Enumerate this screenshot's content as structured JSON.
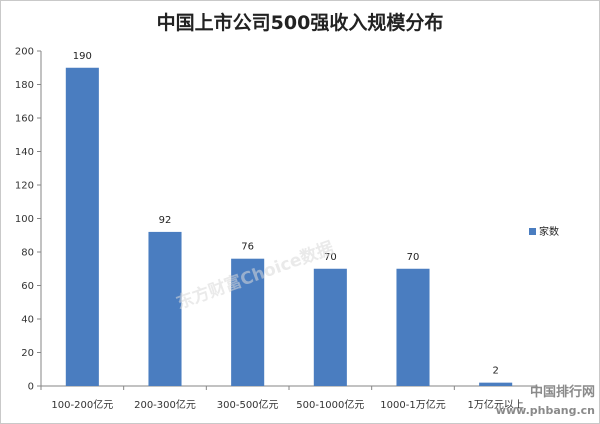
{
  "chart_data": {
    "type": "bar",
    "title": "中国上市公司500强收入规模分布",
    "categories": [
      "100-200亿元",
      "200-300亿元",
      "300-500亿元",
      "500-1000亿元",
      "1000-1万亿元",
      "1万亿元以上"
    ],
    "series": [
      {
        "name": "家数",
        "values": [
          190,
          92,
          76,
          70,
          70,
          2
        ],
        "color": "#4a7dc0"
      }
    ],
    "y_ticks": [
      "0",
      "20",
      "40",
      "60",
      "80",
      "100",
      "120",
      "140",
      "160",
      "180",
      "200"
    ],
    "ylim": [
      0,
      200
    ],
    "data_labels": [
      "190",
      "92",
      "76",
      "70",
      "70",
      "2"
    ],
    "legend_position": "right",
    "grid": false
  },
  "watermark": "东方财富Choice数据",
  "site_mark": {
    "name": "中国排行网",
    "url": "www.phbang.cn"
  }
}
